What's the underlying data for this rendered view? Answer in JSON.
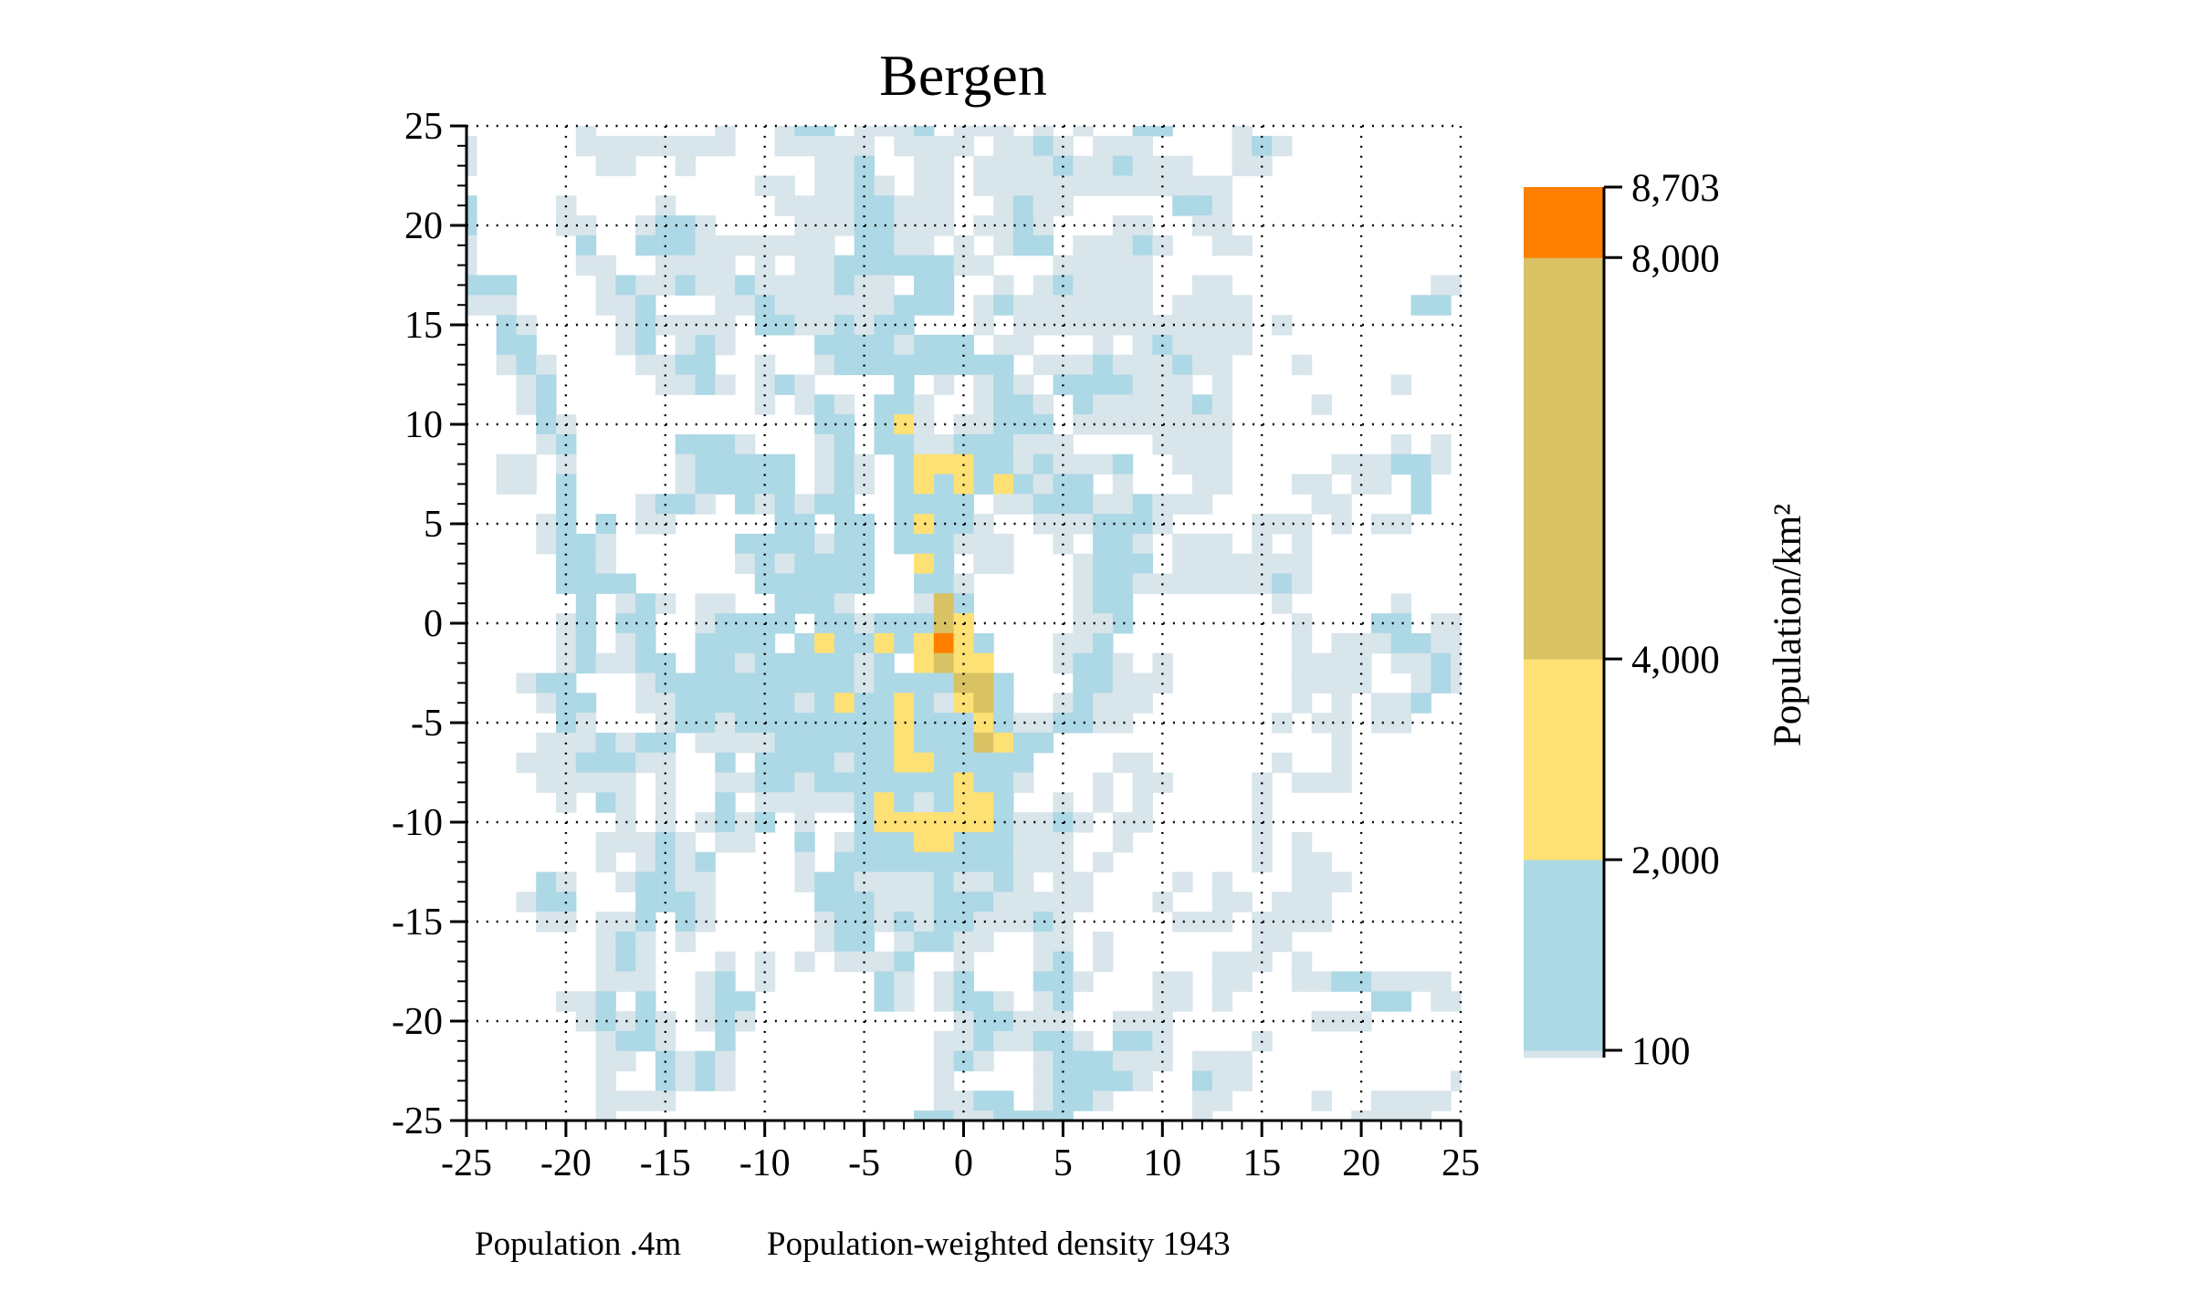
{
  "chart_data": {
    "type": "heatmap",
    "title": "Bergen",
    "xlabel": "",
    "ylabel": "",
    "xlim": [
      -25,
      25
    ],
    "ylim": [
      -25,
      25
    ],
    "cell_size": 1,
    "grid": "dotted, every 5 units",
    "xticks": [
      -25,
      -20,
      -15,
      -10,
      -5,
      0,
      5,
      10,
      15,
      20,
      25
    ],
    "yticks": [
      25,
      20,
      15,
      10,
      5,
      0,
      -5,
      -10,
      -15,
      -20,
      -25
    ],
    "xtick_labels": [
      "-25",
      "-20",
      "-15",
      "-10",
      "-5",
      "0",
      "5",
      "10",
      "15",
      "20",
      "25"
    ],
    "ytick_labels": [
      "25",
      "20",
      "15",
      "10",
      "5",
      "0",
      "-5",
      "-10",
      "-15",
      "-20",
      "-25"
    ],
    "row_encoding": "rows run from y=25 (first) to y=-25 (last); columns from x=-25 to x=25; '.' = no data, codes refer to bins",
    "bins": [
      {
        "code": "g",
        "range": [
          0,
          100
        ],
        "color": "#d8e5eb"
      },
      {
        "code": "b",
        "range": [
          100,
          2000
        ],
        "color": "#add8e5"
      },
      {
        "code": "y",
        "range": [
          2000,
          4000
        ],
        "color": "#fee175"
      },
      {
        "code": "o",
        "range": [
          4000,
          8000
        ],
        "color": "#d8c264"
      },
      {
        "code": "r",
        "range": [
          8000,
          8703
        ],
        "color": "#ff8000"
      }
    ],
    "rows": [
      "......g......g..gbb.gggb.ggg.g.g..bb...g...........",
      "g.....gggggggg..ggggg.gggg.ggbg.ggg....gbg.........",
      "g......gg..g......ggb..gg.ggggbggbggg..gg..........",
      "...............gg.ggbg.gg.ggggggggggggg............",
      "b....g....g.....ggggbbggg..gbgg.....bbg............",
      "b....gg..gbbg....gggbbggg.ggbg...gg..gg............",
      "g.....b..bbbggggggg.bbgg.g.gbb.gggbg..gg...........",
      "g.....gg..gggg.g.ggbbbbbbgg...ggggg................",
      "bbb....gbggbggbggggbgg.bb..g.gbgggg..gg..........gg",
      "ggg....ggb...ggbggggggbbb.gbggggggg.gggg........bb.",
      "..bg....gbgggg.bbggbgbb...g.gggggggggggg.g.........",
      "..bb....gb.gbg....bbbbgbbb.gg...g.gbgggg...........",
      "..gbg....ggbb..g..gbbbbbbbbb.gggbgggbgg...g........",
      "...gb.....ggbg.gbg....b.g.gbg.bbbbggg.g........g...",
      "...gb..........g.gbg.bbg..gbbg.bgggggbg....g.......",
      "....bg............bb.byg.ggbbb.gggggggg............",
      "....gb.....bbbg...gb.bbggbbbggg....gggg........g.g.",
      "..gg.g.....gbbbbb.gbg.byyybbgbgggb..ggg.....gggbbg.",
      "..gg.b.....gbbbbb.gbg.bybybybgbb.g...gg...gg.gg.b..",
      ".....b...gbbg.bgbgbb..bbbb.ggbbbggbggg.....gg...b..",
      "....gb.b.gg.....bb.bb.bybbg..gggbbbg....ggg.g.gg...",
      "....gbbg......bbbbgbb.bbbggg..g.bbg.ggg.g.g........",
      ".....bbg......gbgbbbb..yb.gg...gbbb.ggggggg........",
      ".....bbbb......bbbbbb..bbg.....gbbgggggggbg........",
      "......b.gbg.gg..bbbg...gob.....gbb.......g.....g...",
      ".....gb.bb..gbbbb.bbgbbboy.....ggb........g...bb.gg",
      ".....gb.gb..bbbb.bybbybyryb...ggb.........g.gggbbgg",
      ".....gbggbb.bbgbbbbbgb.yoyy...gbbg.g......gggg.ggbg",
      "...gbb...gbbbbbbbbbbgbbbboob...bbggg......gggg..gbg",
      "....gbb..ggbbbbbbgbybbybgyob..gbggg.......g.g.ggb..",
      ".....bg...gbbgbbbbbbbbybbbybggbbgg.......g.gg.gg...",
      "....gggbgbb.ggggbbbbbbybbboybb..............g......",
      "...gggbbbgg..b.bbbbgbbyybbbbb....gg......g..g......",
      "....ggggg.g..ggbbgbbbbbbbybbg...g.gg....g.ggg......",
      ".....g.bg.g..b.gggggbybgbyyb..g.g.g.....g..........",
      "........g.g.gbgb.g..byyyyyybggbg.gg.....g..........",
      ".......gggbg.gg..b.gbbbyybbbggg..g......g.g........",
      ".......g.gbgb....g.bbbbbbbbbggg.g.......g.gg.......",
      "....bg..gbbgg....gbbggggbggbg.gg....g.g...ggg......",
      "...gbb...bbbg.....bbbgggbbbggggg...g..gg.ggg.......",
      "....gg.ggb.bg.....gbbgbgbbgggbg.....ggg.gggg.......",
      ".......gbg.g......gbb.gbbgg..gg.g.......gg.........",
      ".......gbg...g.g.g.gggb..g...gb.g.....ggg.g........",
      ".......ggg..gb.g.....bg.gb...bbg...gg.gg..ggbbgggg.",
      ".....ggb.b..gbb......bg.gbbg.gb....gg.g.......bb.gg",
      "......gbgbg.gbg..........gbbggg..ggg.......ggg.....",
      ".......gbbg..b..........ggbggbbg.bbg....g..........",
      ".......gg.bgbg..........gbg..gbbbggg.ggg...........",
      ".......g..bgbg..........g....gbbbbg..bgg..........g",
      ".......gggg.............ggbb.gbbg....gg....g..gggg.",
      ".......g...............bbggbbbb......g.......gggg.."
    ],
    "colorbar": {
      "label": "Population/km²",
      "min": 0,
      "max": 8703,
      "ticks": [
        100,
        2000,
        4000,
        8000,
        8703
      ],
      "tick_labels": [
        "100",
        "2,000",
        "4,000",
        "8,000",
        "8,703"
      ]
    },
    "captions": {
      "population": "Population .4m",
      "density": "Population-weighted density 1943"
    }
  }
}
